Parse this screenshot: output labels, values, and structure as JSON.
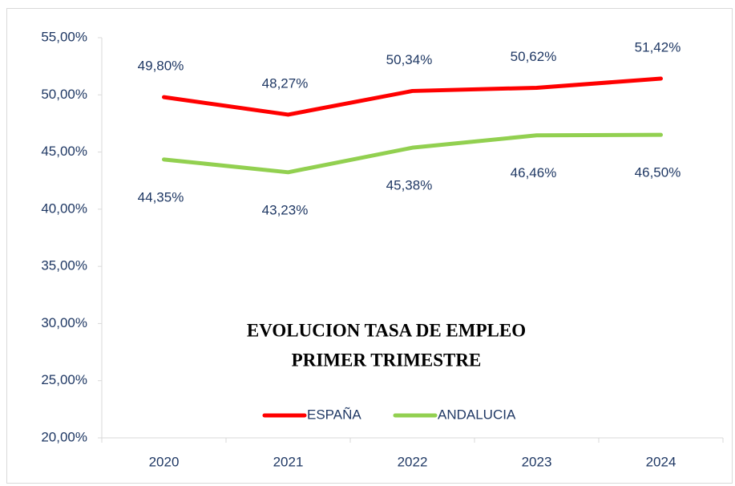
{
  "chart_data": {
    "type": "line",
    "title": [
      "EVOLUCION TASA DE EMPLEO",
      "PRIMER TRIMESTRE"
    ],
    "categories": [
      "2020",
      "2021",
      "2022",
      "2023",
      "2024"
    ],
    "series": [
      {
        "name": "ESPAÑA",
        "color": "#ff0000",
        "values": [
          49.8,
          48.27,
          50.34,
          50.62,
          51.42
        ],
        "value_labels": [
          "49,80%",
          "48,27%",
          "50,34%",
          "50,62%",
          "51,42%"
        ]
      },
      {
        "name": "ANDALUCIA",
        "color": "#92d050",
        "values": [
          44.35,
          43.23,
          45.38,
          46.46,
          46.5
        ],
        "value_labels": [
          "44,35%",
          "43,23%",
          "45,38%",
          "46,46%",
          "46,50%"
        ]
      }
    ],
    "ylim": [
      20,
      55
    ],
    "yticks": [
      {
        "value": 20,
        "label": "20,00%"
      },
      {
        "value": 25,
        "label": "25,00%"
      },
      {
        "value": 30,
        "label": "30,00%"
      },
      {
        "value": 35,
        "label": "35,00%"
      },
      {
        "value": 40,
        "label": "40,00%"
      },
      {
        "value": 45,
        "label": "45,00%"
      },
      {
        "value": 50,
        "label": "50,00%"
      },
      {
        "value": 55,
        "label": "55,00%"
      }
    ]
  }
}
